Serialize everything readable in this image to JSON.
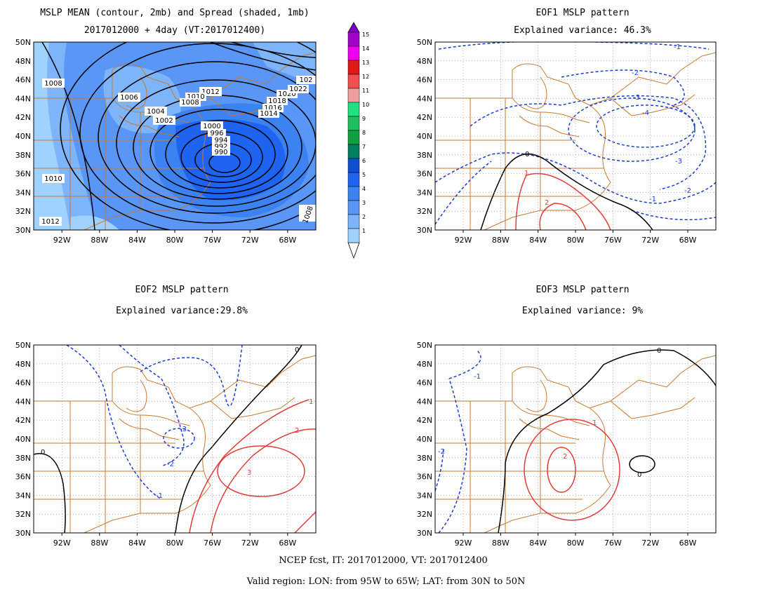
{
  "panels": [
    {
      "id": "mean",
      "title_lines": [
        "MSLP MEAN (contour, 2mb) and Spread (shaded, 1mb)",
        "2017012000 + 4day (VT:2017012400)"
      ],
      "lon_ticks": [
        "92W",
        "88W",
        "84W",
        "80W",
        "76W",
        "72W",
        "68W"
      ],
      "lat_ticks": [
        "50N",
        "48N",
        "46N",
        "44N",
        "42N",
        "40N",
        "38N",
        "36N",
        "34N",
        "32N",
        "30N"
      ],
      "contour_labels": [
        "1008",
        "1006",
        "1004",
        "1002",
        "1000",
        "996",
        "994",
        "992",
        "990",
        "1010",
        "1012",
        "1012",
        "1010",
        "1008",
        "1018",
        "1016",
        "1014",
        "1020",
        "1022",
        "102",
        "1008"
      ]
    },
    {
      "id": "eof1",
      "title_lines": [
        "EOF1 MSLP pattern",
        "Explained variance: 46.3%"
      ],
      "lon_ticks": [
        "92W",
        "88W",
        "84W",
        "80W",
        "76W",
        "72W",
        "68W"
      ],
      "lat_ticks": [
        "50N",
        "48N",
        "46N",
        "44N",
        "42N",
        "40N",
        "38N",
        "36N",
        "34N",
        "32N",
        "30N"
      ],
      "contour_labels": [
        "-1",
        "-2",
        "-3",
        "-4",
        "-3",
        "-2",
        "-1",
        "0",
        "1",
        "2"
      ]
    },
    {
      "id": "eof2",
      "title_lines": [
        "EOF2 MSLP pattern",
        "Explained variance:29.8%"
      ],
      "lon_ticks": [
        "92W",
        "88W",
        "84W",
        "80W",
        "76W",
        "72W",
        "68W"
      ],
      "lat_ticks": [
        "50N",
        "48N",
        "46N",
        "44N",
        "42N",
        "40N",
        "38N",
        "36N",
        "34N",
        "32N",
        "30N"
      ],
      "contour_labels": [
        "0",
        "0",
        "-3",
        "-2",
        "-1",
        "1",
        "2",
        "3"
      ]
    },
    {
      "id": "eof3",
      "title_lines": [
        "EOF3 MSLP pattern",
        "Explained variance: 9%"
      ],
      "lon_ticks": [
        "92W",
        "88W",
        "84W",
        "80W",
        "76W",
        "72W",
        "68W"
      ],
      "lat_ticks": [
        "50N",
        "48N",
        "46N",
        "44N",
        "42N",
        "40N",
        "38N",
        "36N",
        "34N",
        "32N",
        "30N"
      ],
      "contour_labels": [
        "-1",
        "-2",
        "0",
        "0",
        "1",
        "2"
      ]
    }
  ],
  "colorbar": {
    "labels": [
      "15",
      "14",
      "13",
      "12",
      "11",
      "10",
      "9",
      "8",
      "7",
      "6",
      "5",
      "4",
      "3",
      "2",
      "1"
    ],
    "colors": [
      "#a000c8",
      "#f000f0",
      "#e01818",
      "#f05050",
      "#f0a0a0",
      "#20e080",
      "#20c060",
      "#10a040",
      "#008060",
      "#1050d0",
      "#1e64f0",
      "#3c82f0",
      "#5a96f5",
      "#7eb4fa",
      "#a0d2ff"
    ]
  },
  "footer": {
    "line1": "NCEP fcst, IT: 2017012000, VT: 2017012400",
    "line2": "Valid region: LON: from 95W to 65W; LAT: from 30N to 50N"
  },
  "colors": {
    "background": "#ffffff",
    "map_lines": "#c87832",
    "negative_contour": "#1e3cc8",
    "positive_contour": "#e03c3c",
    "zero_contour": "#000000"
  }
}
